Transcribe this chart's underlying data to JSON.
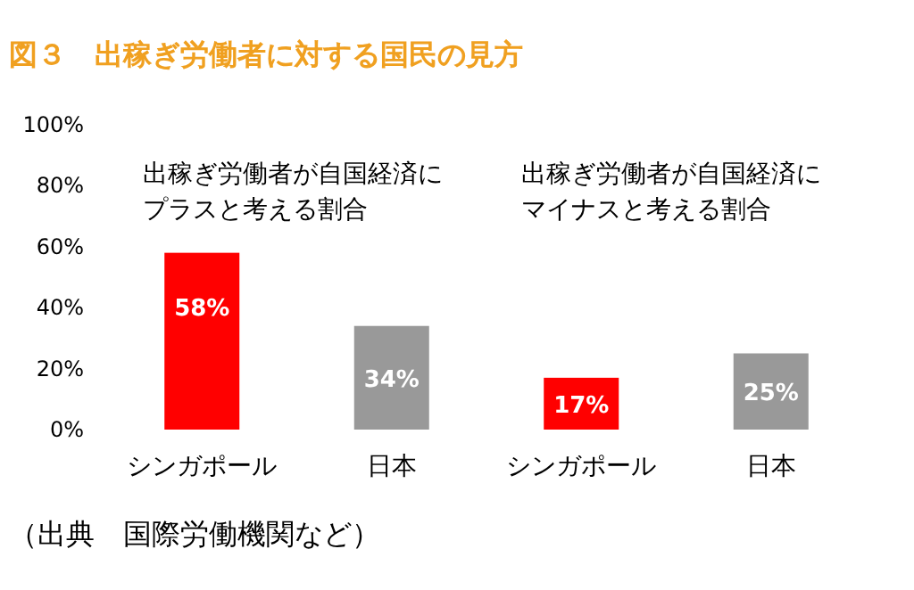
{
  "chart_data": {
    "type": "bar",
    "title": "図３　出稼ぎ労働者に対する国民の見方",
    "categories": [
      "シンガポール",
      "日本",
      "シンガポール",
      "日本"
    ],
    "values": [
      58,
      34,
      17,
      25
    ],
    "colors": [
      "#ff0000",
      "#999999",
      "#ff0000",
      "#999999"
    ],
    "ylim": [
      0,
      100
    ],
    "yticks": [
      {
        "value": 0,
        "label": "0%"
      },
      {
        "value": 20,
        "label": "20%"
      },
      {
        "value": 40,
        "label": "40%"
      },
      {
        "value": 60,
        "label": "60%"
      },
      {
        "value": 80,
        "label": "80%"
      },
      {
        "value": 100,
        "label": "100%"
      }
    ],
    "data_labels": true,
    "value_labels": [
      "58%",
      "34%",
      "17%",
      "25%"
    ],
    "annotations": [
      "出稼ぎ労働者が自国経済にプラスと考える割合",
      "出稼ぎ労働者が自国経済にマイナスと考える割合",
      "（出典　国際労働機関など）"
    ]
  }
}
